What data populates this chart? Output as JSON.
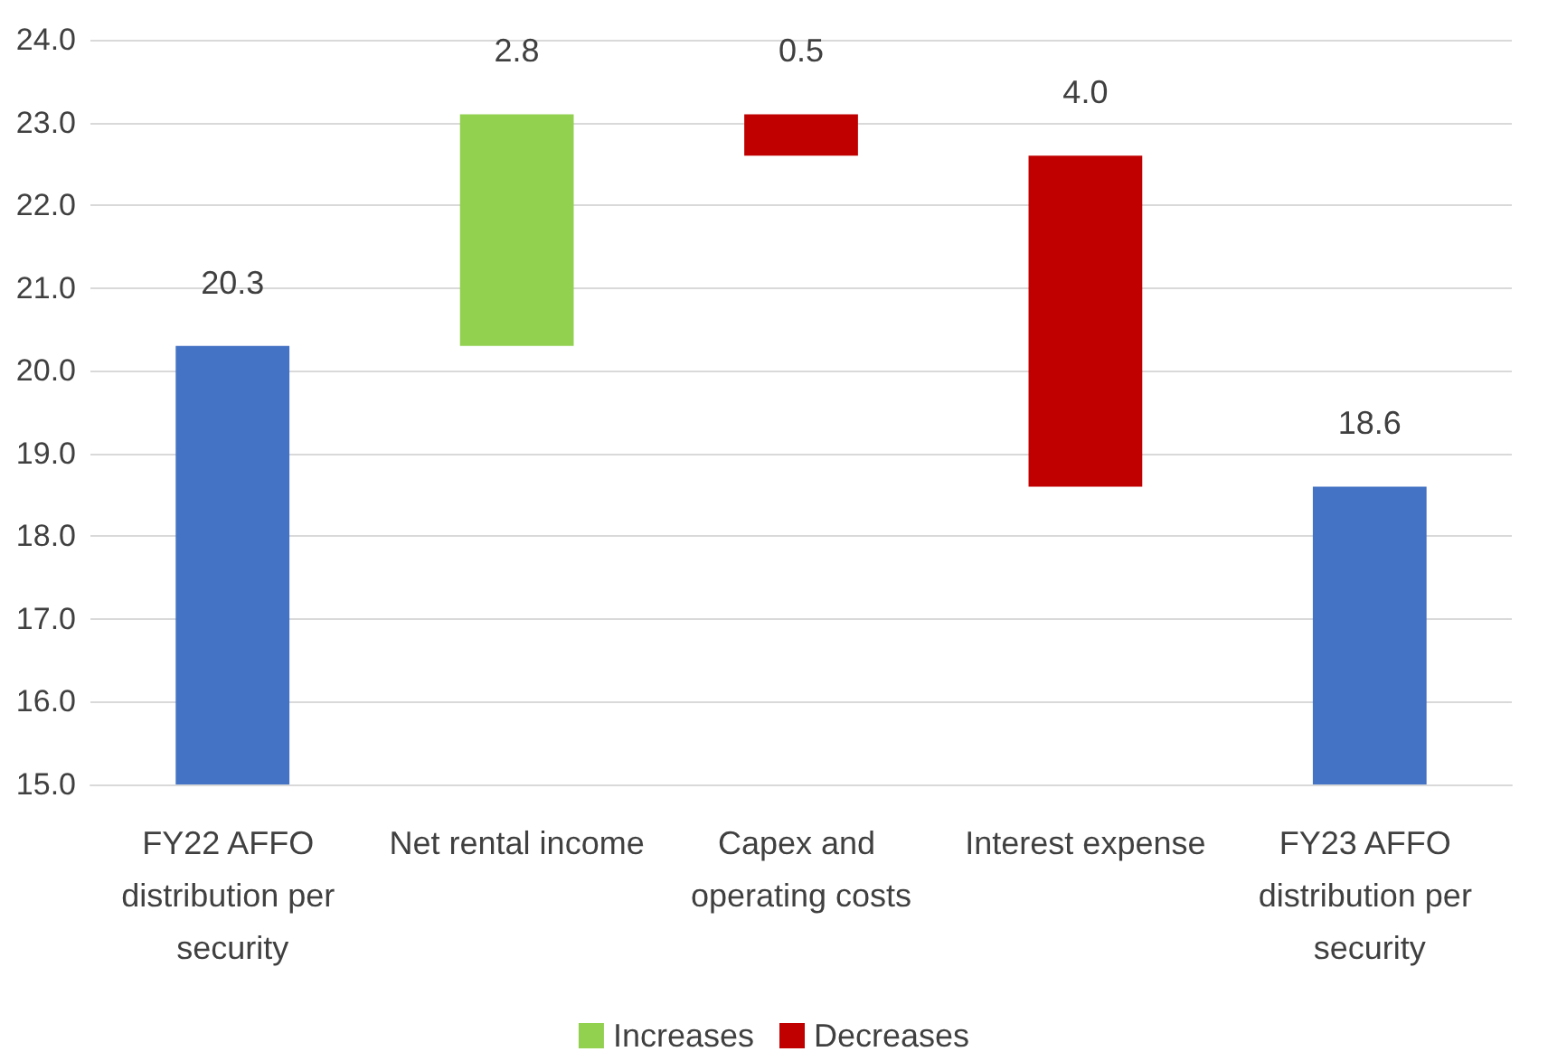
{
  "chart_data": {
    "type": "bar",
    "categories": [
      "FY22 AFFO distribution per security",
      "Net rental income",
      "Capex and operating costs",
      "Interest expense",
      "FY23 AFFO distribution per security"
    ],
    "series": [
      {
        "color": "#4472c4",
        "values": [
          20.3,
          null,
          null,
          null,
          18.6
        ],
        "value_labels": [
          "20.3",
          null,
          null,
          null,
          "18.6"
        ]
      },
      {
        "name": "Increases",
        "color": "#92d050",
        "values": [
          null,
          2.8,
          null,
          null,
          null
        ],
        "base": [
          null,
          20.3,
          null,
          null,
          null
        ],
        "value_labels": [
          null,
          "2.8",
          null,
          null,
          null
        ]
      },
      {
        "name": "Decreases",
        "color": "#c00000",
        "values": [
          null,
          null,
          0.5,
          4.0,
          null
        ],
        "base": [
          null,
          null,
          22.6,
          18.6,
          null
        ],
        "value_labels": [
          null,
          null,
          "0.5",
          "4.0",
          null
        ]
      }
    ],
    "ylim": [
      15,
      24
    ],
    "yticks": [
      {
        "value": 15,
        "label": "15.0"
      },
      {
        "value": 16,
        "label": "16.0"
      },
      {
        "value": 17,
        "label": "17.0"
      },
      {
        "value": 18,
        "label": "18.0"
      },
      {
        "value": 19,
        "label": "19.0"
      },
      {
        "value": 20,
        "label": "20.0"
      },
      {
        "value": 21,
        "label": "21.0"
      },
      {
        "value": 22,
        "label": "22.0"
      },
      {
        "value": 23,
        "label": "23.0"
      },
      {
        "value": 24,
        "label": "24.0"
      }
    ],
    "grid": "y",
    "legend": "bottom"
  }
}
